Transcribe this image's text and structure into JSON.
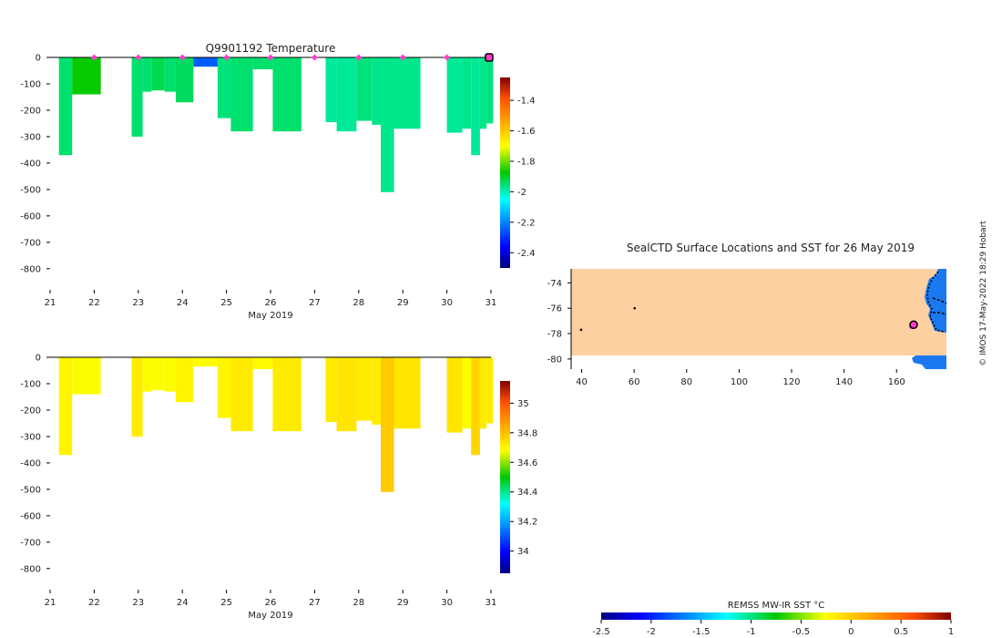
{
  "chart_data": [
    {
      "type": "heatmap",
      "title": "Q9901192  Temperature",
      "xlabel": "May 2019",
      "ylabel": "",
      "xlim": [
        21,
        31
      ],
      "ylim": [
        -880,
        0
      ],
      "x_ticks": [
        21,
        22,
        23,
        24,
        25,
        26,
        27,
        28,
        29,
        30,
        31
      ],
      "y_ticks": [
        0,
        -100,
        -200,
        -300,
        -400,
        -500,
        -600,
        -700,
        -800
      ],
      "colorbar": {
        "min": -2.5,
        "max": -1.25,
        "ticks": [
          -1.4,
          -1.6,
          -1.8,
          -2,
          -2.2,
          -2.4
        ]
      },
      "profile_markers_x": [
        22,
        23,
        24,
        25,
        26,
        27,
        28,
        29,
        30
      ],
      "current_profile_x": 31,
      "profiles": [
        {
          "x0": 21.2,
          "x1": 21.5,
          "depth": 370,
          "value": -1.95
        },
        {
          "x0": 21.5,
          "x1": 22.15,
          "depth": 140,
          "value": -1.87
        },
        {
          "x0": 22.85,
          "x1": 23.1,
          "depth": 300,
          "value": -1.95
        },
        {
          "x0": 23.1,
          "x1": 23.3,
          "depth": 130,
          "value": -1.95
        },
        {
          "x0": 23.3,
          "x1": 23.6,
          "depth": 125,
          "value": -1.93
        },
        {
          "x0": 23.6,
          "x1": 23.85,
          "depth": 130,
          "value": -1.95
        },
        {
          "x0": 23.85,
          "x1": 24.25,
          "depth": 170,
          "value": -1.94
        },
        {
          "x0": 24.25,
          "x1": 24.8,
          "depth": 35,
          "value": -2.25
        },
        {
          "x0": 24.8,
          "x1": 25.1,
          "depth": 230,
          "value": -1.96
        },
        {
          "x0": 25.1,
          "x1": 25.6,
          "depth": 280,
          "value": -1.95
        },
        {
          "x0": 25.6,
          "x1": 26.05,
          "depth": 45,
          "value": -1.95
        },
        {
          "x0": 26.05,
          "x1": 26.7,
          "depth": 280,
          "value": -1.95
        },
        {
          "x0": 27.25,
          "x1": 27.5,
          "depth": 245,
          "value": -1.98
        },
        {
          "x0": 27.5,
          "x1": 27.95,
          "depth": 280,
          "value": -1.98
        },
        {
          "x0": 27.95,
          "x1": 28.3,
          "depth": 240,
          "value": -1.96
        },
        {
          "x0": 28.3,
          "x1": 28.5,
          "depth": 255,
          "value": -1.97
        },
        {
          "x0": 28.5,
          "x1": 28.8,
          "depth": 510,
          "value": -1.97
        },
        {
          "x0": 28.8,
          "x1": 29.4,
          "depth": 270,
          "value": -1.97
        },
        {
          "x0": 30.0,
          "x1": 30.35,
          "depth": 285,
          "value": -1.98
        },
        {
          "x0": 30.35,
          "x1": 30.55,
          "depth": 270,
          "value": -1.97
        },
        {
          "x0": 30.55,
          "x1": 30.75,
          "depth": 370,
          "value": -1.98
        },
        {
          "x0": 30.75,
          "x1": 30.9,
          "depth": 270,
          "value": -1.97
        },
        {
          "x0": 30.9,
          "x1": 31.05,
          "depth": 250,
          "value": -1.96
        }
      ]
    },
    {
      "type": "heatmap",
      "title": "",
      "xlabel": "May 2019",
      "ylabel": "",
      "xlim": [
        21,
        31
      ],
      "ylim": [
        -880,
        0
      ],
      "x_ticks": [
        21,
        22,
        23,
        24,
        25,
        26,
        27,
        28,
        29,
        30,
        31
      ],
      "y_ticks": [
        0,
        -100,
        -200,
        -300,
        -400,
        -500,
        -600,
        -700,
        -800
      ],
      "colorbar": {
        "min": 33.85,
        "max": 35.15,
        "ticks": [
          35,
          34.8,
          34.6,
          34.4,
          34.2,
          34
        ]
      },
      "profiles": [
        {
          "x0": 21.2,
          "x1": 21.5,
          "depth": 370,
          "value": 34.7
        },
        {
          "x0": 21.5,
          "x1": 22.15,
          "depth": 140,
          "value": 34.68
        },
        {
          "x0": 22.85,
          "x1": 23.1,
          "depth": 300,
          "value": 34.72
        },
        {
          "x0": 23.1,
          "x1": 23.3,
          "depth": 130,
          "value": 34.68
        },
        {
          "x0": 23.3,
          "x1": 23.6,
          "depth": 125,
          "value": 34.68
        },
        {
          "x0": 23.6,
          "x1": 23.85,
          "depth": 130,
          "value": 34.68
        },
        {
          "x0": 23.85,
          "x1": 24.25,
          "depth": 170,
          "value": 34.7
        },
        {
          "x0": 24.25,
          "x1": 24.8,
          "depth": 35,
          "value": 34.69
        },
        {
          "x0": 24.8,
          "x1": 25.1,
          "depth": 230,
          "value": 34.7
        },
        {
          "x0": 25.1,
          "x1": 25.6,
          "depth": 280,
          "value": 34.72
        },
        {
          "x0": 25.6,
          "x1": 26.05,
          "depth": 45,
          "value": 34.69
        },
        {
          "x0": 26.05,
          "x1": 26.7,
          "depth": 280,
          "value": 34.72
        },
        {
          "x0": 27.25,
          "x1": 27.5,
          "depth": 245,
          "value": 34.72
        },
        {
          "x0": 27.5,
          "x1": 27.95,
          "depth": 280,
          "value": 34.73
        },
        {
          "x0": 27.95,
          "x1": 28.3,
          "depth": 240,
          "value": 34.72
        },
        {
          "x0": 28.3,
          "x1": 28.5,
          "depth": 255,
          "value": 34.72
        },
        {
          "x0": 28.5,
          "x1": 28.8,
          "depth": 510,
          "value": 34.78
        },
        {
          "x0": 28.8,
          "x1": 29.4,
          "depth": 270,
          "value": 34.73
        },
        {
          "x0": 30.0,
          "x1": 30.35,
          "depth": 285,
          "value": 34.73
        },
        {
          "x0": 30.35,
          "x1": 30.55,
          "depth": 270,
          "value": 34.68
        },
        {
          "x0": 30.55,
          "x1": 30.75,
          "depth": 370,
          "value": 34.76
        },
        {
          "x0": 30.75,
          "x1": 30.9,
          "depth": 270,
          "value": 34.72
        },
        {
          "x0": 30.9,
          "x1": 31.05,
          "depth": 250,
          "value": 34.72
        }
      ]
    },
    {
      "type": "heatmap",
      "title": "SealCTD Surface Locations and SST for 26 May 2019",
      "xlim": [
        36,
        179
      ],
      "ylim": [
        -80.8,
        -72.9
      ],
      "x_ticks": [
        40,
        60,
        80,
        100,
        120,
        140,
        160
      ],
      "y_ticks": [
        -74,
        -76,
        -78,
        -80
      ],
      "colorbar": {
        "label": "REMSS MW-IR SST °C",
        "min": -2.5,
        "max": 1,
        "ticks": [
          -2.5,
          -2,
          -1.5,
          -1,
          -0.5,
          0,
          0.5,
          1
        ]
      },
      "land_color": "#fdd0a2",
      "ocean_color": "#1a79f0",
      "track_color": "#ff3ec9",
      "points": [
        {
          "lon": 60.2,
          "lat": -76.0
        },
        {
          "lon": 39.8,
          "lat": -77.7
        }
      ],
      "current_location": {
        "lon": 166.5,
        "lat": -77.3
      },
      "credit": "© IMOS 17-May-2022 18:29 Hobart"
    }
  ]
}
